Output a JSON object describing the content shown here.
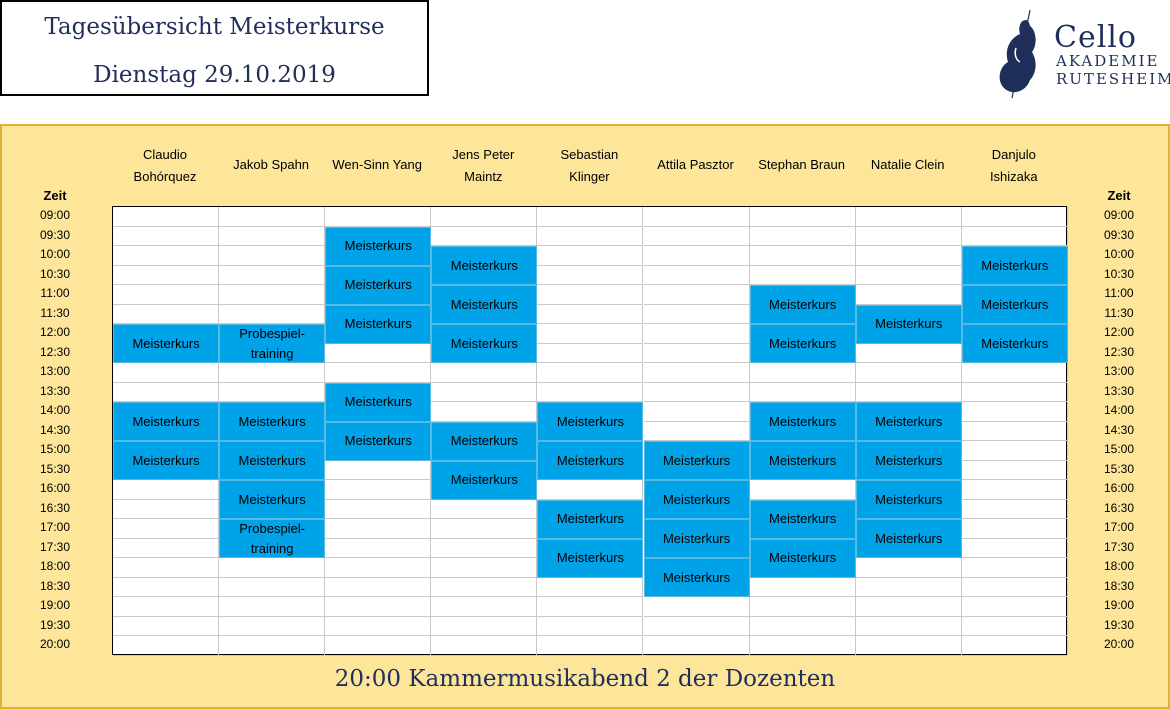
{
  "header": {
    "title": "Tagesübersicht Meisterkurse",
    "date": "Dienstag 29.10.2019"
  },
  "logo": {
    "line1": "Cello",
    "line2": "AKADEMIE",
    "line3": "RUTESHEIM",
    "icon": "cello-icon"
  },
  "schedule": {
    "time_header": "Zeit",
    "times": [
      "09:00",
      "09:30",
      "10:00",
      "10:30",
      "11:00",
      "11:30",
      "12:00",
      "12:30",
      "13:00",
      "13:30",
      "14:00",
      "14:30",
      "15:00",
      "15:30",
      "16:00",
      "16:30",
      "17:00",
      "17:30",
      "18:00",
      "18:30",
      "19:00",
      "19:30",
      "20:00"
    ],
    "teachers": [
      "Claudio Bohórquez",
      "Jakob Spahn",
      "Wen-Sinn Yang",
      "Jens Peter Maintz",
      "Sebastian Klinger",
      "Attila Pasztor",
      "Stephan Braun",
      "Natalie Clein",
      "Danjulo Ishizaka"
    ],
    "teacher_lines": [
      [
        "Claudio",
        "Bohórquez"
      ],
      [
        "Jakob Spahn"
      ],
      [
        "Wen-Sinn Yang"
      ],
      [
        "Jens Peter",
        "Maintz"
      ],
      [
        "Sebastian",
        "Klinger"
      ],
      [
        "Attila Pasztor"
      ],
      [
        "Stephan Braun"
      ],
      [
        "Natalie Clein"
      ],
      [
        "Danjulo",
        "Ishizaka"
      ]
    ],
    "events": [
      {
        "col": 0,
        "start": 6,
        "span": 2,
        "label": "Meisterkurs"
      },
      {
        "col": 0,
        "start": 10,
        "span": 2,
        "label": "Meisterkurs"
      },
      {
        "col": 0,
        "start": 12,
        "span": 2,
        "label": "Meisterkurs"
      },
      {
        "col": 1,
        "start": 6,
        "span": 2,
        "label": "Probespiel-\ntraining"
      },
      {
        "col": 1,
        "start": 10,
        "span": 2,
        "label": "Meisterkurs"
      },
      {
        "col": 1,
        "start": 12,
        "span": 2,
        "label": "Meisterkurs"
      },
      {
        "col": 1,
        "start": 14,
        "span": 2,
        "label": "Meisterkurs"
      },
      {
        "col": 1,
        "start": 16,
        "span": 2,
        "label": "Probespiel-\ntraining"
      },
      {
        "col": 2,
        "start": 1,
        "span": 2,
        "label": "Meisterkurs"
      },
      {
        "col": 2,
        "start": 3,
        "span": 2,
        "label": "Meisterkurs"
      },
      {
        "col": 2,
        "start": 5,
        "span": 2,
        "label": "Meisterkurs"
      },
      {
        "col": 2,
        "start": 9,
        "span": 2,
        "label": "Meisterkurs"
      },
      {
        "col": 2,
        "start": 11,
        "span": 2,
        "label": "Meisterkurs"
      },
      {
        "col": 3,
        "start": 2,
        "span": 2,
        "label": "Meisterkurs"
      },
      {
        "col": 3,
        "start": 4,
        "span": 2,
        "label": "Meisterkurs"
      },
      {
        "col": 3,
        "start": 6,
        "span": 2,
        "label": "Meisterkurs"
      },
      {
        "col": 3,
        "start": 11,
        "span": 2,
        "label": "Meisterkurs"
      },
      {
        "col": 3,
        "start": 13,
        "span": 2,
        "label": "Meisterkurs"
      },
      {
        "col": 4,
        "start": 10,
        "span": 2,
        "label": "Meisterkurs"
      },
      {
        "col": 4,
        "start": 12,
        "span": 2,
        "label": "Meisterkurs"
      },
      {
        "col": 4,
        "start": 15,
        "span": 2,
        "label": "Meisterkurs"
      },
      {
        "col": 4,
        "start": 17,
        "span": 2,
        "label": "Meisterkurs"
      },
      {
        "col": 5,
        "start": 12,
        "span": 2,
        "label": "Meisterkurs"
      },
      {
        "col": 5,
        "start": 14,
        "span": 2,
        "label": "Meisterkurs"
      },
      {
        "col": 5,
        "start": 16,
        "span": 2,
        "label": "Meisterkurs"
      },
      {
        "col": 5,
        "start": 18,
        "span": 2,
        "label": "Meisterkurs"
      },
      {
        "col": 6,
        "start": 4,
        "span": 2,
        "label": "Meisterkurs"
      },
      {
        "col": 6,
        "start": 6,
        "span": 2,
        "label": "Meisterkurs"
      },
      {
        "col": 6,
        "start": 10,
        "span": 2,
        "label": "Meisterkurs"
      },
      {
        "col": 6,
        "start": 12,
        "span": 2,
        "label": "Meisterkurs"
      },
      {
        "col": 6,
        "start": 15,
        "span": 2,
        "label": "Meisterkurs"
      },
      {
        "col": 6,
        "start": 17,
        "span": 2,
        "label": "Meisterkurs"
      },
      {
        "col": 7,
        "start": 5,
        "span": 2,
        "label": "Meisterkurs"
      },
      {
        "col": 7,
        "start": 10,
        "span": 2,
        "label": "Meisterkurs"
      },
      {
        "col": 7,
        "start": 12,
        "span": 2,
        "label": "Meisterkurs"
      },
      {
        "col": 7,
        "start": 14,
        "span": 2,
        "label": "Meisterkurs"
      },
      {
        "col": 7,
        "start": 16,
        "span": 2,
        "label": "Meisterkurs"
      },
      {
        "col": 8,
        "start": 2,
        "span": 2,
        "label": "Meisterkurs"
      },
      {
        "col": 8,
        "start": 4,
        "span": 2,
        "label": "Meisterkurs"
      },
      {
        "col": 8,
        "start": 6,
        "span": 2,
        "label": "Meisterkurs"
      }
    ]
  },
  "footer": {
    "text": "20:00 Kammermusikabend 2 der Dozenten"
  },
  "colors": {
    "panel_bg": "#fde59a",
    "event_bg": "#00a2e8",
    "title_text": "#1f2f5a"
  }
}
